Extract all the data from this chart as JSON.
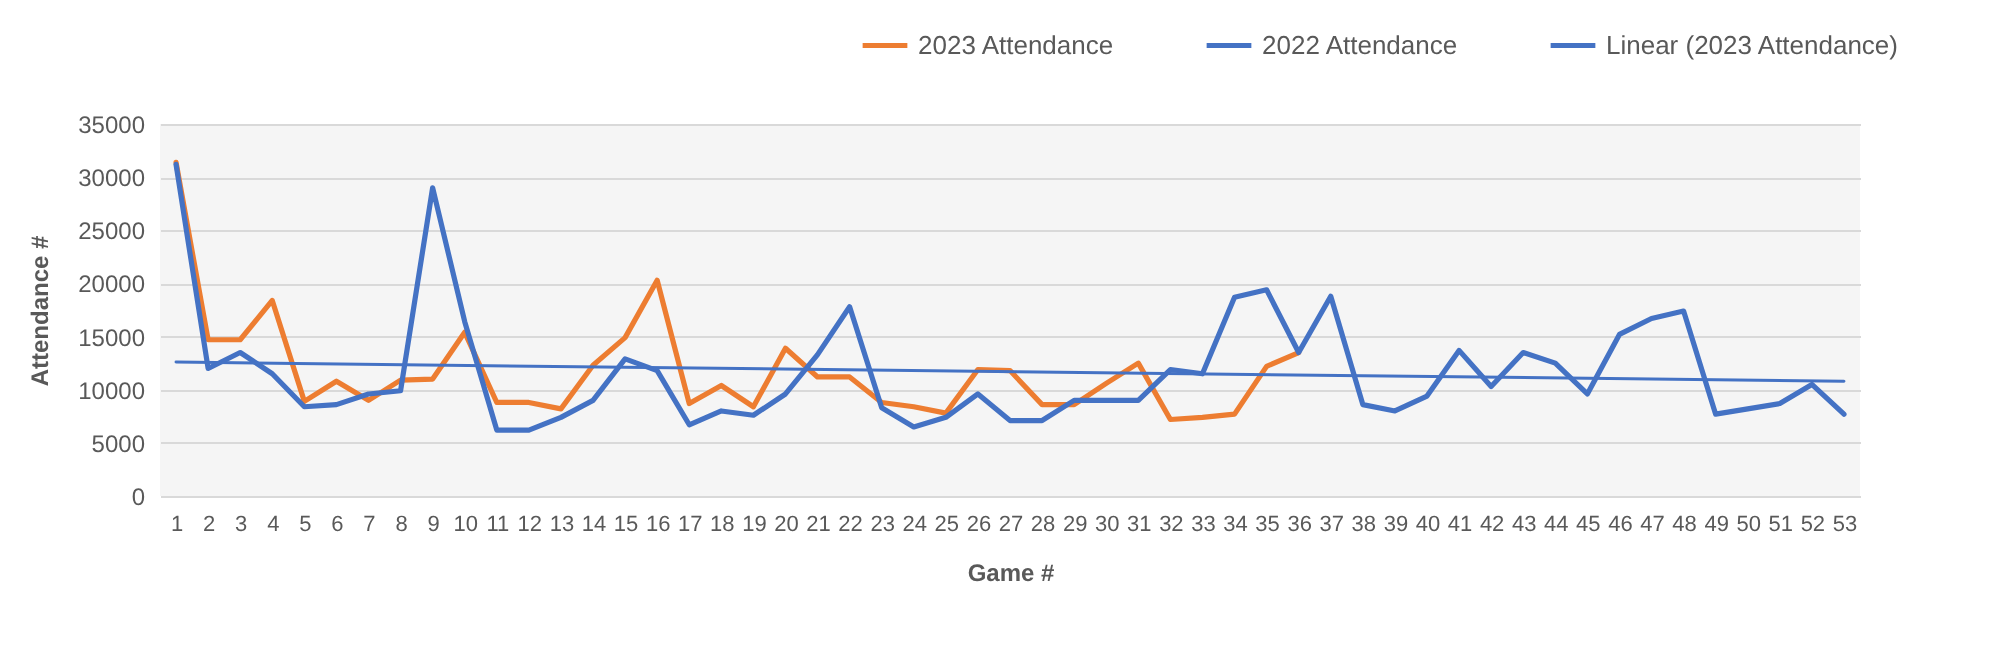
{
  "chart_data": {
    "type": "line",
    "xlabel": "Game #",
    "ylabel": "Attendance #",
    "x": [
      1,
      2,
      3,
      4,
      5,
      6,
      7,
      8,
      9,
      10,
      11,
      12,
      13,
      14,
      15,
      16,
      17,
      18,
      19,
      20,
      21,
      22,
      23,
      24,
      25,
      26,
      27,
      28,
      29,
      30,
      31,
      32,
      33,
      34,
      35,
      36,
      37,
      38,
      39,
      40,
      41,
      42,
      43,
      44,
      45,
      46,
      47,
      48,
      49,
      50,
      51,
      52,
      53
    ],
    "xlim": [
      0.5,
      53.5
    ],
    "xticks": [
      1,
      2,
      3,
      4,
      5,
      6,
      7,
      8,
      9,
      10,
      11,
      12,
      13,
      14,
      15,
      16,
      17,
      18,
      19,
      20,
      21,
      22,
      23,
      24,
      25,
      26,
      27,
      28,
      29,
      30,
      31,
      32,
      33,
      34,
      35,
      36,
      37,
      38,
      39,
      40,
      41,
      42,
      43,
      44,
      45,
      46,
      47,
      48,
      49,
      50,
      51,
      52,
      53
    ],
    "ylim": [
      0,
      35000
    ],
    "yticks": [
      0,
      5000,
      10000,
      15000,
      20000,
      25000,
      30000,
      35000
    ],
    "grid": "y",
    "legend": "top right",
    "series": [
      {
        "name": "2023 Attendance",
        "color": "#ed7d31",
        "values": [
          31400,
          14700,
          14700,
          18400,
          8900,
          10800,
          9000,
          10900,
          11000,
          15400,
          8800,
          8800,
          8200,
          12300,
          14900,
          20300,
          8700,
          10400,
          8400,
          13900,
          11200,
          11200,
          8800,
          8400,
          7800,
          11900,
          11800,
          8600,
          8600,
          10600,
          12500,
          7200,
          7400,
          7700,
          12200,
          13500,
          null,
          null,
          null,
          null,
          null,
          null,
          null,
          null,
          null,
          null,
          null,
          null,
          null,
          null,
          null,
          null,
          null
        ]
      },
      {
        "name": "2022 Attendance",
        "color": "#4472c4",
        "values": [
          31200,
          12000,
          13500,
          11500,
          8400,
          8600,
          9600,
          9900,
          29000,
          16400,
          6200,
          6200,
          7400,
          9000,
          12900,
          11800,
          6700,
          8000,
          7600,
          9600,
          13300,
          17800,
          8300,
          6500,
          7400,
          9600,
          7100,
          7100,
          9000,
          9000,
          9000,
          11900,
          11500,
          18700,
          19400,
          13500,
          18800,
          8600,
          8000,
          9400,
          13700,
          10300,
          13500,
          12500,
          9600,
          15200,
          16700,
          17400,
          7700,
          8200,
          8700,
          10500,
          7700
        ]
      },
      {
        "name": "Linear (2023 Attendance)",
        "type": "line",
        "color": "#4472c4",
        "x": [
          1,
          53
        ],
        "values": [
          12600,
          10800
        ]
      }
    ]
  }
}
